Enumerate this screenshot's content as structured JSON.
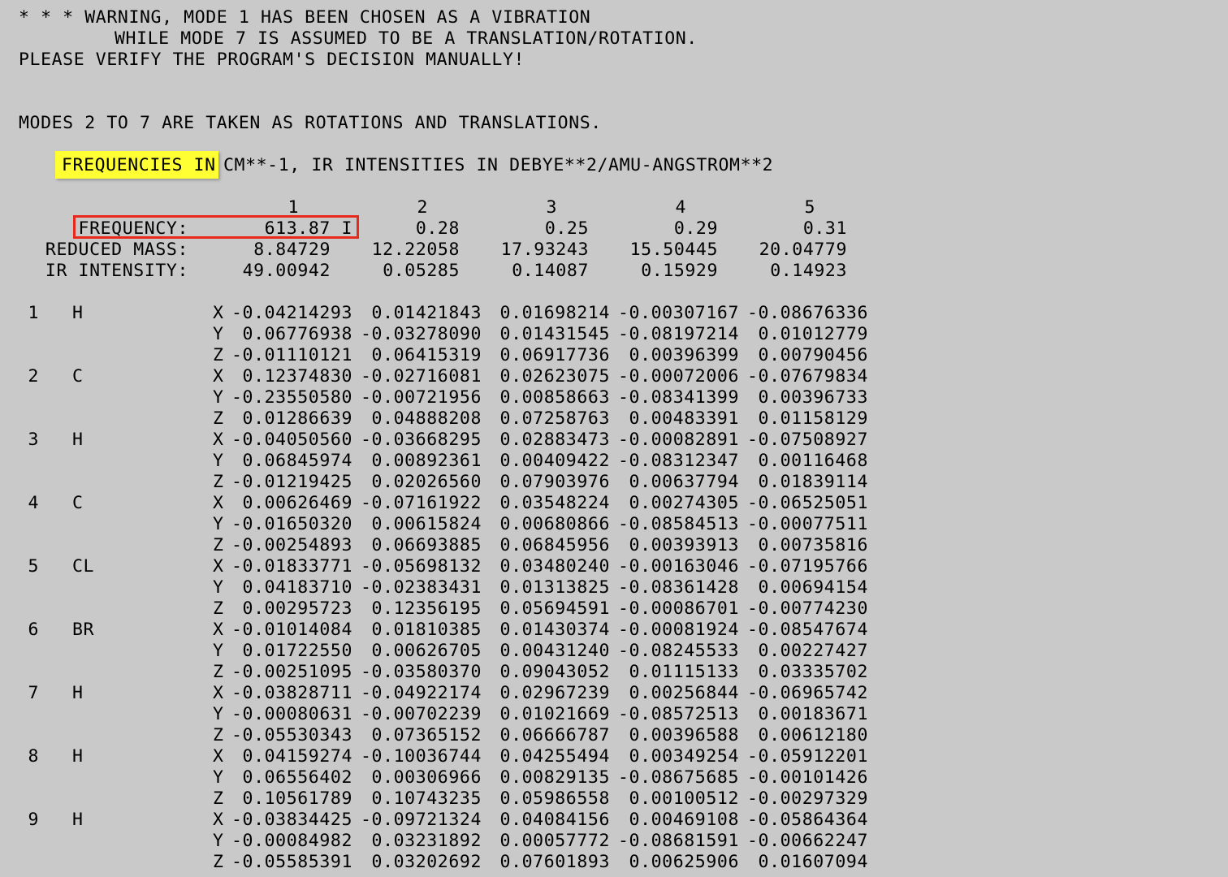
{
  "warning": {
    "line1": "* * * WARNING, MODE 1 HAS BEEN CHOSEN AS A VIBRATION",
    "line2": "WHILE MODE 7 IS ASSUMED TO BE A TRANSLATION/ROTATION.",
    "line3": "PLEASE VERIFY THE PROGRAM'S DECISION MANUALLY!"
  },
  "modes_line": "MODES 2 TO 7 ARE TAKEN AS ROTATIONS AND TRANSLATIONS.",
  "units_header": {
    "highlighted": "FREQUENCIES IN",
    "rest": "CM**-1, IR INTENSITIES IN DEBYE**2/AMU-ANGSTROM**2"
  },
  "mode_numbers": [
    "1",
    "2",
    "3",
    "4",
    "5"
  ],
  "frequency_row": {
    "label": "FREQUENCY:",
    "values": [
      "613.87 I",
      "0.28",
      "0.25",
      "0.29",
      "0.31"
    ]
  },
  "reduced_mass_row": {
    "label": "REDUCED MASS:",
    "values": [
      "8.84729",
      "12.22058",
      "17.93243",
      "15.50445",
      "20.04779"
    ]
  },
  "ir_intensity_row": {
    "label": "IR INTENSITY:",
    "values": [
      "49.00942",
      "0.05285",
      "0.14087",
      "0.15929",
      "0.14923"
    ]
  },
  "atoms": [
    {
      "index": "1",
      "symbol": "H",
      "coords": [
        {
          "axis": "X",
          "values": [
            "-0.04214293",
            "0.01421843",
            "0.01698214",
            "-0.00307167",
            "-0.08676336"
          ]
        },
        {
          "axis": "Y",
          "values": [
            "0.06776938",
            "-0.03278090",
            "0.01431545",
            "-0.08197214",
            "0.01012779"
          ]
        },
        {
          "axis": "Z",
          "values": [
            "-0.01110121",
            "0.06415319",
            "0.06917736",
            "0.00396399",
            "0.00790456"
          ]
        }
      ]
    },
    {
      "index": "2",
      "symbol": "C",
      "coords": [
        {
          "axis": "X",
          "values": [
            "0.12374830",
            "-0.02716081",
            "0.02623075",
            "-0.00072006",
            "-0.07679834"
          ]
        },
        {
          "axis": "Y",
          "values": [
            "-0.23550580",
            "-0.00721956",
            "0.00858663",
            "-0.08341399",
            "0.00396733"
          ]
        },
        {
          "axis": "Z",
          "values": [
            "0.01286639",
            "0.04888208",
            "0.07258763",
            "0.00483391",
            "0.01158129"
          ]
        }
      ]
    },
    {
      "index": "3",
      "symbol": "H",
      "coords": [
        {
          "axis": "X",
          "values": [
            "-0.04050560",
            "-0.03668295",
            "0.02883473",
            "-0.00082891",
            "-0.07508927"
          ]
        },
        {
          "axis": "Y",
          "values": [
            "0.06845974",
            "0.00892361",
            "0.00409422",
            "-0.08312347",
            "0.00116468"
          ]
        },
        {
          "axis": "Z",
          "values": [
            "-0.01219425",
            "0.02026560",
            "0.07903976",
            "0.00637794",
            "0.01839114"
          ]
        }
      ]
    },
    {
      "index": "4",
      "symbol": "C",
      "coords": [
        {
          "axis": "X",
          "values": [
            "0.00626469",
            "-0.07161922",
            "0.03548224",
            "0.00274305",
            "-0.06525051"
          ]
        },
        {
          "axis": "Y",
          "values": [
            "-0.01650320",
            "0.00615824",
            "0.00680866",
            "-0.08584513",
            "-0.00077511"
          ]
        },
        {
          "axis": "Z",
          "values": [
            "-0.00254893",
            "0.06693885",
            "0.06845956",
            "0.00393913",
            "0.00735816"
          ]
        }
      ]
    },
    {
      "index": "5",
      "symbol": "CL",
      "coords": [
        {
          "axis": "X",
          "values": [
            "-0.01833771",
            "-0.05698132",
            "0.03480240",
            "-0.00163046",
            "-0.07195766"
          ]
        },
        {
          "axis": "Y",
          "values": [
            "0.04183710",
            "-0.02383431",
            "0.01313825",
            "-0.08361428",
            "0.00694154"
          ]
        },
        {
          "axis": "Z",
          "values": [
            "0.00295723",
            "0.12356195",
            "0.05694591",
            "-0.00086701",
            "-0.00774230"
          ]
        }
      ]
    },
    {
      "index": "6",
      "symbol": "BR",
      "coords": [
        {
          "axis": "X",
          "values": [
            "-0.01014084",
            "0.01810385",
            "0.01430374",
            "-0.00081924",
            "-0.08547674"
          ]
        },
        {
          "axis": "Y",
          "values": [
            "0.01722550",
            "0.00626705",
            "0.00431240",
            "-0.08245533",
            "0.00227427"
          ]
        },
        {
          "axis": "Z",
          "values": [
            "-0.00251095",
            "-0.03580370",
            "0.09043052",
            "0.01115133",
            "0.03335702"
          ]
        }
      ]
    },
    {
      "index": "7",
      "symbol": "H",
      "coords": [
        {
          "axis": "X",
          "values": [
            "-0.03828711",
            "-0.04922174",
            "0.02967239",
            "0.00256844",
            "-0.06965742"
          ]
        },
        {
          "axis": "Y",
          "values": [
            "-0.00080631",
            "-0.00702239",
            "0.01021669",
            "-0.08572513",
            "0.00183671"
          ]
        },
        {
          "axis": "Z",
          "values": [
            "-0.05530343",
            "0.07365152",
            "0.06666787",
            "0.00396588",
            "0.00612180"
          ]
        }
      ]
    },
    {
      "index": "8",
      "symbol": "H",
      "coords": [
        {
          "axis": "X",
          "values": [
            "0.04159274",
            "-0.10036744",
            "0.04255494",
            "0.00349254",
            "-0.05912201"
          ]
        },
        {
          "axis": "Y",
          "values": [
            "0.06556402",
            "0.00306966",
            "0.00829135",
            "-0.08675685",
            "-0.00101426"
          ]
        },
        {
          "axis": "Z",
          "values": [
            "0.10561789",
            "0.10743235",
            "0.05986558",
            "0.00100512",
            "-0.00297329"
          ]
        }
      ]
    },
    {
      "index": "9",
      "symbol": "H",
      "coords": [
        {
          "axis": "X",
          "values": [
            "-0.03834425",
            "-0.09721324",
            "0.04084156",
            "0.00469108",
            "-0.05864364"
          ]
        },
        {
          "axis": "Y",
          "values": [
            "-0.00084982",
            "0.03231892",
            "0.00057772",
            "-0.08681591",
            "-0.00662247"
          ]
        },
        {
          "axis": "Z",
          "values": [
            "-0.05585391",
            "0.03202692",
            "0.07601893",
            "0.00625906",
            "0.01607094"
          ]
        }
      ]
    }
  ]
}
